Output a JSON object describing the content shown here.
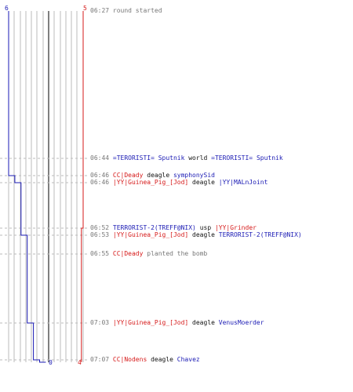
{
  "colors": {
    "team_blue": "#1a1ab4",
    "team_red": "#d61a1a",
    "grid": "#bbbbbb",
    "center_line": "#555555",
    "dashed_guide": "#bbbbbb",
    "time_text": "#777777"
  },
  "counts": {
    "blue_start": "6",
    "red_start": "5",
    "blue_end": "0",
    "red_end": "4"
  },
  "events": [
    {
      "time": "06:27",
      "parts": [
        {
          "text": "round started",
          "color": "plain"
        }
      ]
    },
    {
      "time": "06:44",
      "parts": [
        {
          "text": "=TERORISTI= Sputnik",
          "color": "blue"
        },
        {
          "text": " world ",
          "color": "black"
        },
        {
          "text": "=TERORISTI= Sputnik",
          "color": "blue"
        }
      ]
    },
    {
      "time": "06:46",
      "parts": [
        {
          "text": "CC|Deady",
          "color": "red"
        },
        {
          "text": " deagle ",
          "color": "black"
        },
        {
          "text": "symphonySid",
          "color": "blue"
        }
      ]
    },
    {
      "time": "06:46",
      "parts": [
        {
          "text": "|YY|Guinea_Pig_[Jod]",
          "color": "red"
        },
        {
          "text": " deagle ",
          "color": "black"
        },
        {
          "text": "|YY|MALnJoint",
          "color": "blue"
        }
      ]
    },
    {
      "time": "06:52",
      "parts": [
        {
          "text": "TERRORIST-2(TREFF@NIX)",
          "color": "blue"
        },
        {
          "text": " usp ",
          "color": "black"
        },
        {
          "text": "|YY|Grinder",
          "color": "red"
        }
      ]
    },
    {
      "time": "06:53",
      "parts": [
        {
          "text": "|YY|Guinea_Pig_[Jod]",
          "color": "red"
        },
        {
          "text": " deagle ",
          "color": "black"
        },
        {
          "text": "TERRORIST-2(TREFF@NIX)",
          "color": "blue"
        }
      ]
    },
    {
      "time": "06:55",
      "parts": [
        {
          "text": "CC|Deady",
          "color": "red"
        },
        {
          "text": " planted the bomb",
          "color": "plain"
        }
      ]
    },
    {
      "time": "07:03",
      "parts": [
        {
          "text": "|YY|Guinea_Pig_[Jod]",
          "color": "red"
        },
        {
          "text": " deagle ",
          "color": "black"
        },
        {
          "text": "VenusMoerder",
          "color": "blue"
        }
      ]
    },
    {
      "time": "07:07",
      "parts": [
        {
          "text": "CC|Nodens",
          "color": "red"
        },
        {
          "text": " deagle ",
          "color": "black"
        },
        {
          "text": "Chavez",
          "color": "blue"
        }
      ]
    }
  ],
  "blue_alive_steps": [
    6,
    6,
    5,
    4,
    4,
    3,
    3,
    2,
    1,
    0
  ],
  "red_alive_steps": [
    5,
    5,
    5,
    5,
    4,
    4,
    4,
    4,
    4,
    4
  ]
}
